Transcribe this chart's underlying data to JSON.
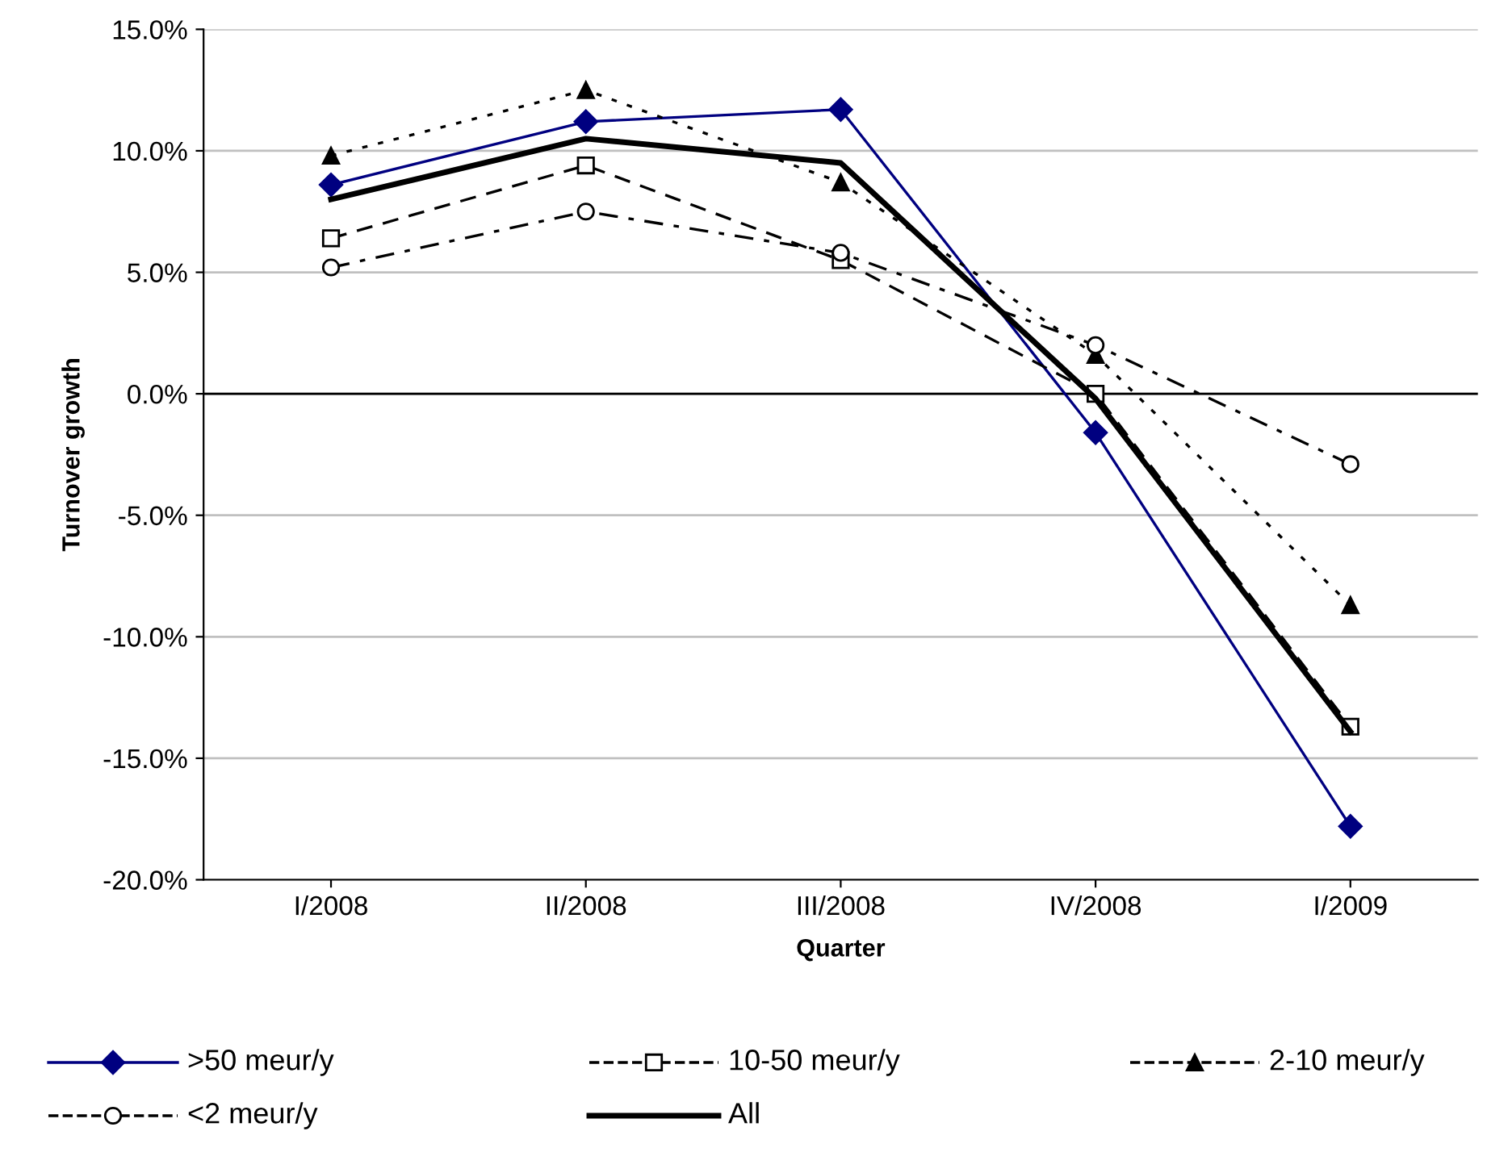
{
  "chart_data": {
    "type": "line",
    "xlabel": "Quarter",
    "ylabel": "Turnover growth",
    "categories": [
      "I/2008",
      "II/2008",
      "III/2008",
      "IV/2008",
      "I/2009"
    ],
    "series": [
      {
        "name": ">50 meur/y",
        "color": "#000080",
        "marker": "diamond",
        "line_style": "solid",
        "values": [
          8.6,
          11.2,
          11.7,
          -1.6,
          -17.8
        ]
      },
      {
        "name": "10-50 meur/y",
        "color": "#000000",
        "marker": "square",
        "line_style": "dashed",
        "values": [
          6.4,
          9.4,
          5.5,
          0.0,
          -13.7
        ]
      },
      {
        "name": "2-10 meur/y",
        "color": "#000000",
        "marker": "triangle",
        "line_style": "dotted",
        "values": [
          9.8,
          12.5,
          8.7,
          1.6,
          -8.7
        ]
      },
      {
        "name": "<2 meur/y",
        "color": "#000000",
        "marker": "circle",
        "line_style": "dashdot",
        "values": [
          5.2,
          7.5,
          5.8,
          2.0,
          -2.9
        ]
      },
      {
        "name": "All",
        "color": "#000000",
        "marker": "none",
        "line_style": "solid",
        "values": [
          8.0,
          10.5,
          9.5,
          -0.2,
          -13.9
        ]
      }
    ],
    "ylim": [
      -20,
      15
    ],
    "yticks": [
      {
        "value": -20,
        "label": "-20.0%"
      },
      {
        "value": -15,
        "label": "-15.0%"
      },
      {
        "value": -10,
        "label": "-10.0%"
      },
      {
        "value": -5,
        "label": "-5.0%"
      },
      {
        "value": 0,
        "label": "0.0%"
      },
      {
        "value": 5,
        "label": "5.0%"
      },
      {
        "value": 10,
        "label": "10.0%"
      },
      {
        "value": 15,
        "label": "15.0%"
      }
    ],
    "grid": "y",
    "legend": "bottom"
  }
}
